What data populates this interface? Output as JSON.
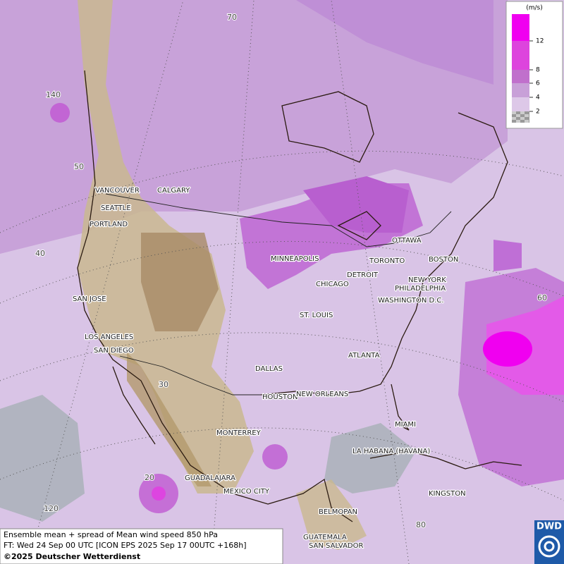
{
  "map": {
    "places": [
      "VANCOUVER",
      "CALGARY",
      "SEATTLE",
      "PORTLAND",
      "MINNEAPOLIS",
      "OTTAWA",
      "TORONTO",
      "BOSTON",
      "DETROIT",
      "NEW YORK",
      "PHILADELPHIA",
      "CHICAGO",
      "WASHINGTON D.C.",
      "SAN JOSE",
      "ST. LOUIS",
      "LOS ANGELES",
      "SAN DIEGO",
      "ATLANTA",
      "DALLAS",
      "HOUSTON",
      "NEW ORLEANS",
      "MIAMI",
      "MONTERREY",
      "LA HABANA (HAVANA)",
      "GUADALAJARA",
      "MEXICO CITY",
      "KINGSTON",
      "BELMOPAN",
      "GUATEMALA",
      "SAN SALVADOR"
    ],
    "grid_labels": [
      "70",
      "140",
      "50",
      "40",
      "30",
      "20",
      "120",
      "60",
      "80"
    ]
  },
  "legend": {
    "unit": "(m/s)",
    "levels": [
      "12",
      "8",
      "6",
      "4",
      "2"
    ]
  },
  "caption": {
    "line1": "Ensemble mean + spread of Mean wind speed 850 hPa",
    "line2": "FT: Wed 24 Sep 00 UTC [ICON EPS 2025 Sep 17 00UTC +168h]",
    "line3": "©2025 Deutscher Wetterdienst"
  },
  "logo": "DWD"
}
